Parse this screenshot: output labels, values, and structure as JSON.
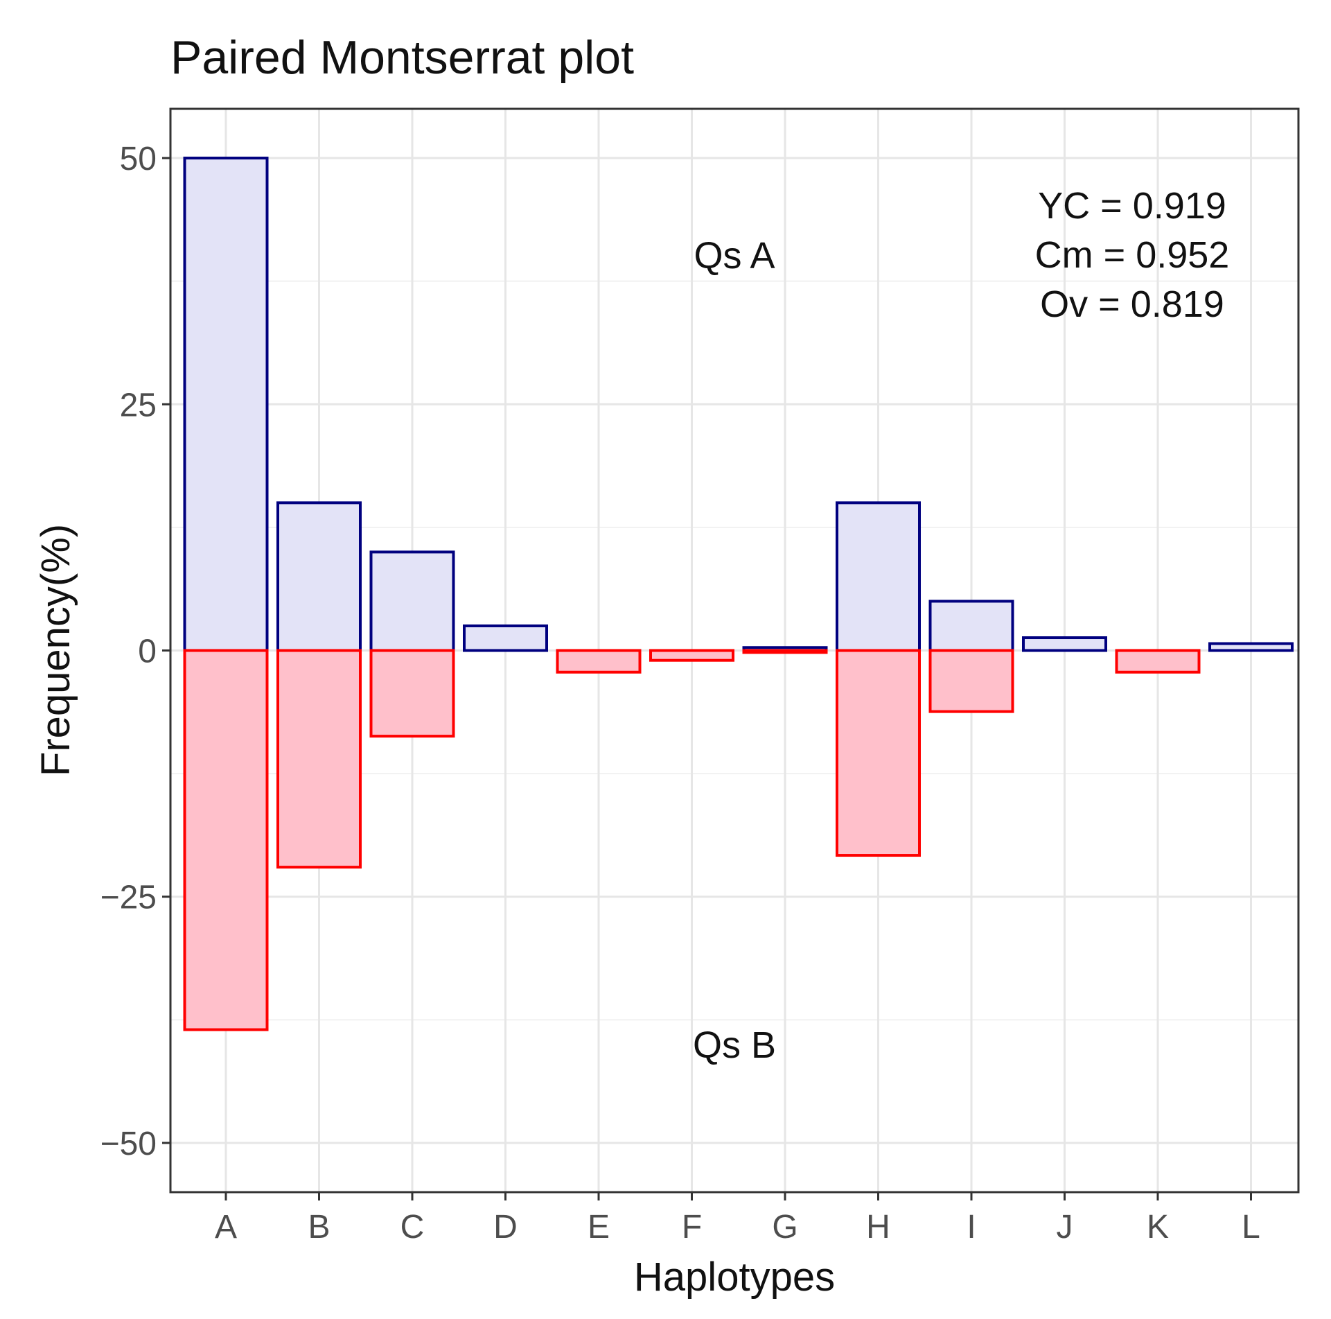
{
  "chart_data": {
    "type": "bar",
    "title": "Paired Montserrat plot",
    "xlabel": "Haplotypes",
    "ylabel": "Frequency(%)",
    "ylim": [
      -55,
      55
    ],
    "yticks": [
      -50,
      -25,
      0,
      25,
      50
    ],
    "ytick_labels": [
      "−50",
      "−25",
      "0",
      "25",
      "50"
    ],
    "grid": true,
    "categories": [
      "A",
      "B",
      "C",
      "D",
      "E",
      "F",
      "G",
      "H",
      "I",
      "J",
      "K",
      "L"
    ],
    "series": [
      {
        "name": "Qs A",
        "values": [
          50,
          15,
          10,
          2.5,
          0,
          0,
          0.3,
          15,
          5,
          1.3,
          0,
          0.7
        ],
        "fill": "#e3e3f7",
        "stroke": "#00007f"
      },
      {
        "name": "Qs B",
        "values": [
          -38.5,
          -22,
          -8.7,
          0,
          -2.2,
          -1,
          -0.2,
          -20.8,
          -6.2,
          0,
          -2.2,
          0
        ],
        "fill": "#ffc0cb",
        "stroke": "#ff0000"
      }
    ],
    "annotations": {
      "group_top": "Qs A",
      "group_bottom": "Qs B",
      "stats": [
        "YC = 0.919",
        "Cm = 0.952",
        "Ov = 0.819"
      ]
    }
  }
}
